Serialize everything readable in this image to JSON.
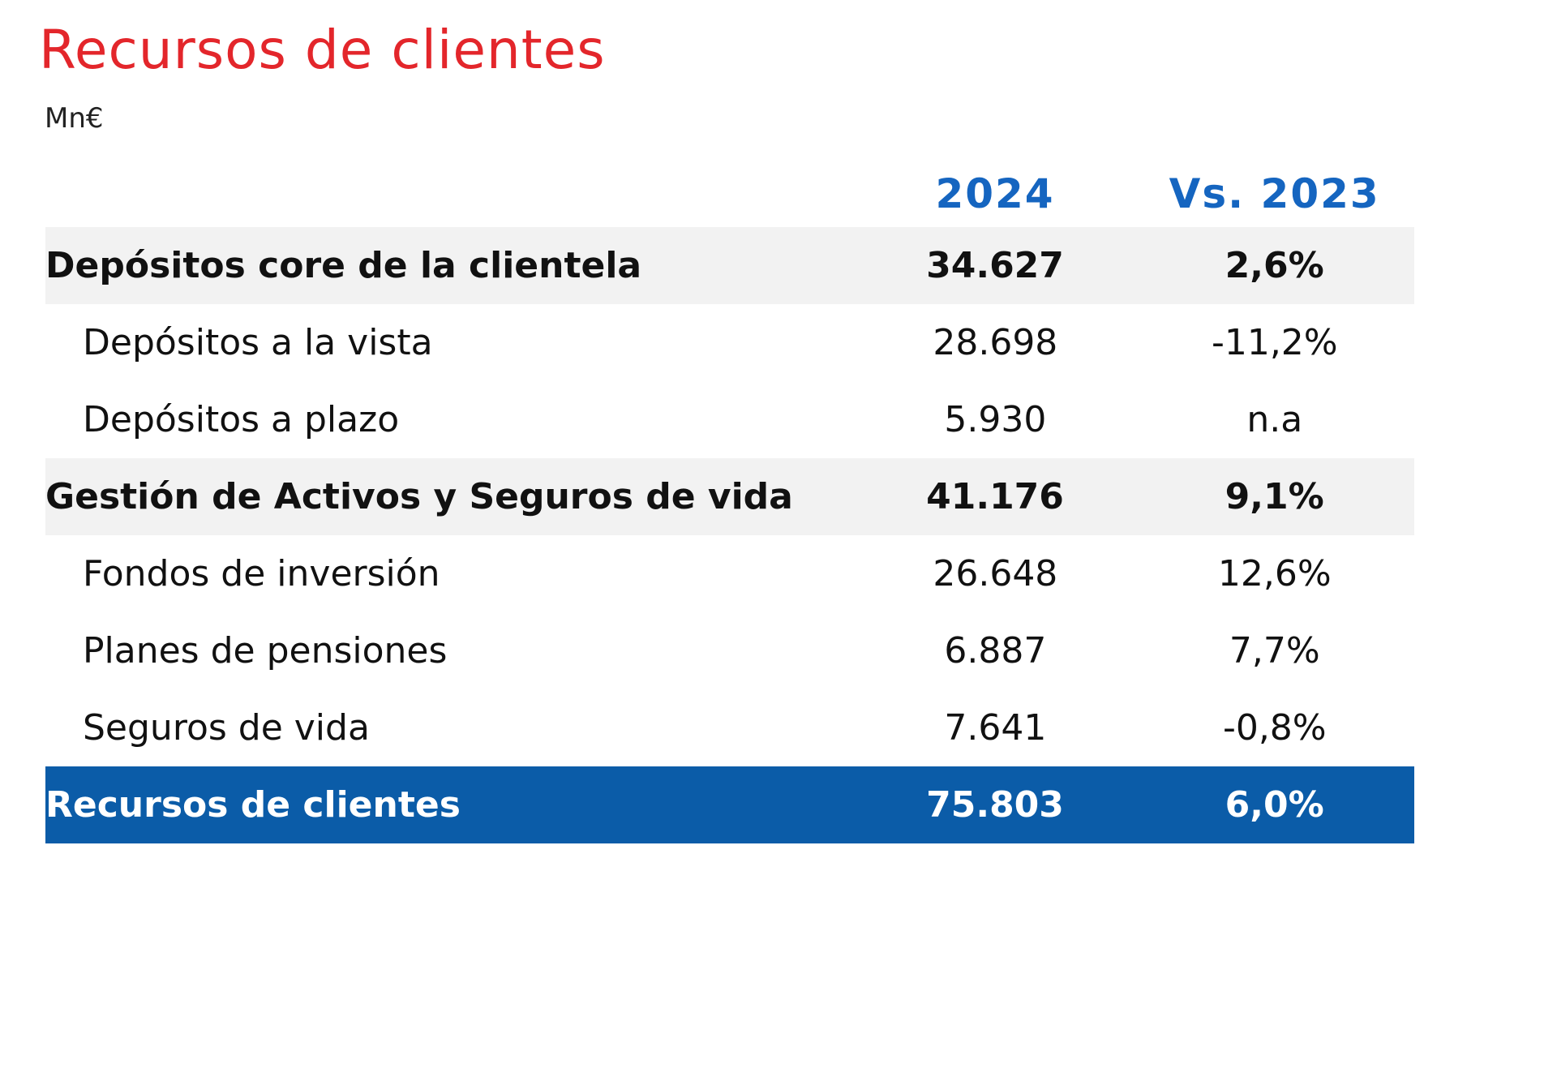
{
  "title": "Recursos de clientes",
  "unit": "Mn€",
  "columns": {
    "year": "2024",
    "comparison": "Vs. 2023"
  },
  "rows": [
    {
      "label": "Depósitos core de la clientela",
      "value_2024": "34.627",
      "vs_2023": "2,6%"
    },
    {
      "label": "Depósitos a la vista",
      "value_2024": "28.698",
      "vs_2023": "-11,2%"
    },
    {
      "label": "Depósitos a plazo",
      "value_2024": "5.930",
      "vs_2023": "n.a"
    },
    {
      "label": "Gestión de Activos y Seguros de vida",
      "value_2024": "41.176",
      "vs_2023": "9,1%"
    },
    {
      "label": "Fondos de inversión",
      "value_2024": "26.648",
      "vs_2023": "12,6%"
    },
    {
      "label": "Planes de pensiones",
      "value_2024": "6.887",
      "vs_2023": "7,7%"
    },
    {
      "label": "Seguros de vida",
      "value_2024": "7.641",
      "vs_2023": "-0,8%"
    },
    {
      "label": "Recursos de clientes",
      "value_2024": "75.803",
      "vs_2023": "6,0%"
    }
  ],
  "colors": {
    "title": "#e3262b",
    "header": "#1565c0",
    "total_background": "#0b5ca8",
    "shaded_background": "#f2f2f2"
  }
}
